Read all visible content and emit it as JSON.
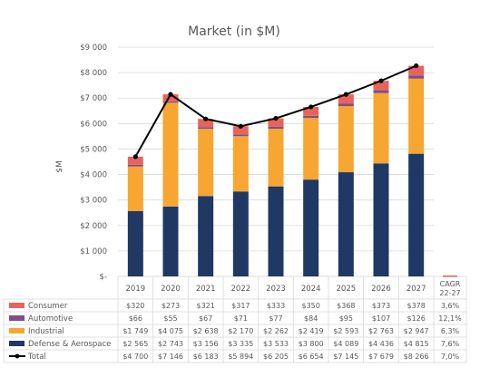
{
  "chart_data": {
    "type": "bar",
    "stacked": true,
    "title": "Market (in $M)",
    "ylabel": "$M",
    "ylim": [
      0,
      9000
    ],
    "yticks": [
      "$-",
      "$1 000",
      "$2 000",
      "$3 000",
      "$4 000",
      "$5 000",
      "$6 000",
      "$7 000",
      "$8 000",
      "$9 000"
    ],
    "categories": [
      "2019",
      "2020",
      "2021",
      "2022",
      "2023",
      "2024",
      "2025",
      "2026",
      "2027"
    ],
    "cagr_header": [
      "CAGR",
      "22-27"
    ],
    "grid": true,
    "legend": "data-table",
    "series": [
      {
        "name": "Consumer",
        "type": "bar",
        "color": "#E8645A",
        "values": [
          320,
          273,
          321,
          317,
          333,
          350,
          368,
          373,
          378
        ],
        "labels": [
          "$320",
          "$273",
          "$321",
          "$317",
          "$333",
          "$350",
          "$368",
          "$373",
          "$378"
        ],
        "cagr": "3,6%"
      },
      {
        "name": "Automotive",
        "type": "bar",
        "color": "#7B4F8E",
        "values": [
          66,
          55,
          67,
          71,
          77,
          84,
          95,
          107,
          126
        ],
        "labels": [
          "$66",
          "$55",
          "$67",
          "$71",
          "$77",
          "$84",
          "$95",
          "$107",
          "$126"
        ],
        "cagr": "12,1%"
      },
      {
        "name": "Industrial",
        "type": "bar",
        "color": "#F6A631",
        "values": [
          1749,
          4075,
          2638,
          2170,
          2262,
          2419,
          2593,
          2763,
          2947
        ],
        "labels": [
          "$1 749",
          "$4 075",
          "$2 638",
          "$2 170",
          "$2 262",
          "$2 419",
          "$2 593",
          "$2 763",
          "$2 947"
        ],
        "cagr": "6,3%"
      },
      {
        "name": "Defense & Aerospace",
        "type": "bar",
        "color": "#1F3864",
        "values": [
          2565,
          2743,
          3156,
          3335,
          3533,
          3800,
          4089,
          4436,
          4815
        ],
        "labels": [
          "$2 565",
          "$2 743",
          "$3 156",
          "$3 335",
          "$3 533",
          "$3 800",
          "$4 089",
          "$4 436",
          "$4 815"
        ],
        "cagr": "7,6%"
      },
      {
        "name": "Total",
        "type": "line",
        "color": "#000000",
        "values": [
          4700,
          7146,
          6183,
          5894,
          6205,
          6654,
          7145,
          7679,
          8266
        ],
        "labels": [
          "$4 700",
          "$7 146",
          "$6 183",
          "$5 894",
          "$6 205",
          "$6 654",
          "$7 145",
          "$7 679",
          "$8 266"
        ],
        "cagr": "7,0%"
      }
    ]
  }
}
